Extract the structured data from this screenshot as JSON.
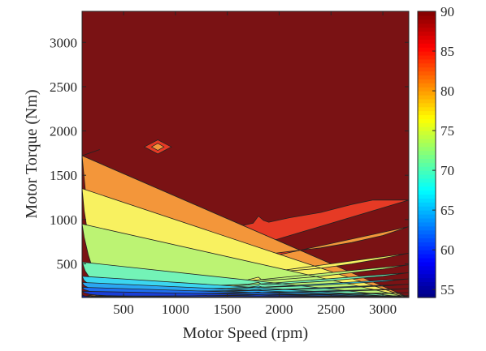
{
  "chart_data": {
    "type": "contour",
    "xlabel": "Motor Speed (rpm)",
    "ylabel": "Motor Torque (Nm)",
    "xlim": [
      100,
      3250
    ],
    "ylim": [
      120,
      3350
    ],
    "xticks": [
      500,
      1000,
      1500,
      2000,
      2500,
      3000
    ],
    "yticks": [
      500,
      1000,
      1500,
      2000,
      2500,
      3000
    ],
    "colorbar": {
      "ticks": [
        55,
        60,
        65,
        70,
        75,
        80,
        85,
        90
      ],
      "range": [
        54,
        90
      ],
      "colormap": "jet"
    },
    "levels": [
      54,
      57,
      60,
      63,
      66,
      69,
      72,
      75,
      78,
      81,
      84,
      87,
      90
    ],
    "background_color": "#7a1214",
    "bands": [
      {
        "min": 87,
        "color": "#7a1214",
        "boundary": [
          [
            100,
            3350
          ],
          [
            100,
            1880
          ],
          [
            270,
            1790
          ],
          [
            100,
            1720
          ],
          [
            120,
            1500
          ],
          [
            160,
            1300
          ],
          [
            240,
            1120
          ],
          [
            400,
            980
          ],
          [
            600,
            915
          ],
          [
            800,
            890
          ],
          [
            1000,
            885
          ],
          [
            1200,
            890
          ],
          [
            1400,
            900
          ],
          [
            1600,
            920
          ],
          [
            1750,
            960
          ],
          [
            1800,
            1040
          ],
          [
            1850,
            990
          ],
          [
            1900,
            970
          ],
          [
            2100,
            1020
          ],
          [
            2400,
            1080
          ],
          [
            2700,
            1170
          ],
          [
            2900,
            1220
          ],
          [
            3250,
            1220
          ],
          [
            3250,
            3350
          ],
          [
            270,
            3350
          ],
          [
            270,
            1950
          ],
          [
            100,
            1950
          ]
        ]
      },
      {
        "min": 84,
        "color": "#e63a25",
        "boundary": [
          [
            3250,
            1220
          ],
          [
            2900,
            1220
          ],
          [
            2700,
            1170
          ],
          [
            2400,
            1080
          ],
          [
            2100,
            1020
          ],
          [
            1900,
            970
          ],
          [
            1850,
            990
          ],
          [
            1800,
            1040
          ],
          [
            1750,
            960
          ],
          [
            1600,
            920
          ],
          [
            1400,
            900
          ],
          [
            1200,
            890
          ],
          [
            1000,
            885
          ],
          [
            800,
            890
          ],
          [
            600,
            915
          ],
          [
            400,
            980
          ],
          [
            240,
            1120
          ],
          [
            160,
            1300
          ],
          [
            120,
            1500
          ],
          [
            100,
            1720
          ]
        ]
      },
      {
        "min": 81,
        "color": "#f3963a",
        "boundary": [
          [
            3250,
            920
          ],
          [
            3000,
            820
          ],
          [
            2700,
            740
          ],
          [
            2400,
            680
          ],
          [
            2100,
            640
          ],
          [
            1900,
            610
          ],
          [
            1830,
            620
          ],
          [
            1800,
            660
          ],
          [
            1700,
            580
          ],
          [
            1500,
            540
          ],
          [
            1200,
            500
          ],
          [
            1000,
            485
          ],
          [
            800,
            475
          ],
          [
            600,
            480
          ],
          [
            450,
            500
          ],
          [
            330,
            560
          ],
          [
            240,
            700
          ],
          [
            180,
            950
          ],
          [
            130,
            1350
          ],
          [
            100,
            1720
          ]
        ]
      },
      {
        "min": 78,
        "color": "#f8f160",
        "boundary": [
          [
            3250,
            620
          ],
          [
            3000,
            560
          ],
          [
            2700,
            500
          ],
          [
            2400,
            450
          ],
          [
            2100,
            420
          ],
          [
            1900,
            400
          ],
          [
            1830,
            410
          ],
          [
            1800,
            440
          ],
          [
            1700,
            400
          ],
          [
            1500,
            380
          ],
          [
            1200,
            360
          ],
          [
            1000,
            350
          ],
          [
            800,
            345
          ],
          [
            600,
            345
          ],
          [
            450,
            350
          ],
          [
            330,
            380
          ],
          [
            260,
            450
          ],
          [
            200,
            600
          ],
          [
            160,
            800
          ],
          [
            120,
            1100
          ],
          [
            100,
            1350
          ]
        ]
      },
      {
        "min": 75,
        "color": "#bcf373",
        "boundary": [
          [
            3250,
            490
          ],
          [
            3000,
            440
          ],
          [
            2700,
            400
          ],
          [
            2400,
            360
          ],
          [
            2100,
            330
          ],
          [
            1900,
            315
          ],
          [
            1830,
            320
          ],
          [
            1800,
            350
          ],
          [
            1700,
            320
          ],
          [
            1500,
            300
          ],
          [
            1200,
            290
          ],
          [
            1000,
            285
          ],
          [
            800,
            280
          ],
          [
            600,
            280
          ],
          [
            450,
            285
          ],
          [
            330,
            300
          ],
          [
            260,
            350
          ],
          [
            200,
            450
          ],
          [
            160,
            600
          ],
          [
            120,
            800
          ],
          [
            100,
            950
          ]
        ]
      },
      {
        "min": 72,
        "color": "#73f3b7",
        "boundary": [
          [
            3250,
            400
          ],
          [
            3000,
            360
          ],
          [
            2700,
            330
          ],
          [
            2400,
            300
          ],
          [
            2100,
            280
          ],
          [
            1900,
            265
          ],
          [
            1830,
            270
          ],
          [
            1800,
            290
          ],
          [
            1700,
            270
          ],
          [
            1500,
            260
          ],
          [
            1200,
            250
          ],
          [
            1000,
            245
          ],
          [
            800,
            240
          ],
          [
            600,
            240
          ],
          [
            450,
            245
          ],
          [
            330,
            255
          ],
          [
            250,
            280
          ],
          [
            180,
            330
          ],
          [
            130,
            420
          ],
          [
            100,
            520
          ]
        ]
      },
      {
        "min": 69,
        "color": "#3bd6f0",
        "boundary": [
          [
            3250,
            330
          ],
          [
            3000,
            300
          ],
          [
            2700,
            280
          ],
          [
            2400,
            260
          ],
          [
            2100,
            245
          ],
          [
            1900,
            235
          ],
          [
            1830,
            240
          ],
          [
            1800,
            250
          ],
          [
            1700,
            235
          ],
          [
            1500,
            225
          ],
          [
            1200,
            220
          ],
          [
            1000,
            215
          ],
          [
            800,
            212
          ],
          [
            600,
            212
          ],
          [
            450,
            215
          ],
          [
            330,
            220
          ],
          [
            240,
            235
          ],
          [
            170,
            265
          ],
          [
            120,
            310
          ],
          [
            100,
            360
          ]
        ]
      },
      {
        "min": 66,
        "color": "#2aa6f2",
        "boundary": [
          [
            3250,
            270
          ],
          [
            3000,
            250
          ],
          [
            2700,
            235
          ],
          [
            2400,
            220
          ],
          [
            2100,
            210
          ],
          [
            1900,
            203
          ],
          [
            1830,
            206
          ],
          [
            1800,
            212
          ],
          [
            1700,
            202
          ],
          [
            1500,
            196
          ],
          [
            1200,
            192
          ],
          [
            1000,
            190
          ],
          [
            800,
            188
          ],
          [
            600,
            188
          ],
          [
            450,
            190
          ],
          [
            330,
            195
          ],
          [
            240,
            205
          ],
          [
            170,
            225
          ],
          [
            120,
            255
          ],
          [
            100,
            290
          ]
        ]
      },
      {
        "min": 63,
        "color": "#1f6ff0",
        "boundary": [
          [
            3250,
            220
          ],
          [
            3000,
            205
          ],
          [
            2700,
            195
          ],
          [
            2400,
            185
          ],
          [
            2100,
            178
          ],
          [
            1900,
            173
          ],
          [
            1830,
            175
          ],
          [
            1800,
            180
          ],
          [
            1700,
            172
          ],
          [
            1500,
            168
          ],
          [
            1200,
            165
          ],
          [
            1000,
            163
          ],
          [
            800,
            162
          ],
          [
            600,
            162
          ],
          [
            450,
            164
          ],
          [
            330,
            168
          ],
          [
            240,
            176
          ],
          [
            170,
            190
          ],
          [
            120,
            210
          ],
          [
            100,
            235
          ]
        ]
      },
      {
        "min": 60,
        "color": "#1a3fd8",
        "boundary": [
          [
            3250,
            175
          ],
          [
            3000,
            165
          ],
          [
            2700,
            158
          ],
          [
            2400,
            152
          ],
          [
            2100,
            148
          ],
          [
            1900,
            145
          ],
          [
            1800,
            150
          ],
          [
            1700,
            144
          ],
          [
            1500,
            141
          ],
          [
            1200,
            139
          ],
          [
            1000,
            138
          ],
          [
            800,
            137
          ],
          [
            600,
            137
          ],
          [
            450,
            138
          ],
          [
            330,
            141
          ],
          [
            240,
            147
          ],
          [
            170,
            157
          ],
          [
            120,
            172
          ],
          [
            100,
            190
          ]
        ]
      },
      {
        "min": 57,
        "color": "#0a16a5",
        "boundary": [
          [
            3250,
            140
          ],
          [
            3000,
            133
          ],
          [
            2700,
            129
          ],
          [
            2400,
            126
          ],
          [
            2100,
            124
          ],
          [
            1800,
            124
          ],
          [
            1500,
            122
          ],
          [
            1200,
            121
          ],
          [
            1000,
            120
          ],
          [
            100,
            120
          ],
          [
            100,
            150
          ],
          [
            120,
            138
          ],
          [
            170,
            128
          ],
          [
            250,
            122
          ],
          [
            330,
            120
          ]
        ]
      }
    ],
    "islands": [
      {
        "value": 84,
        "color": "#e63a25",
        "points": [
          [
            700,
            1820
          ],
          [
            830,
            1900
          ],
          [
            960,
            1820
          ],
          [
            830,
            1740
          ]
        ]
      },
      {
        "value": 81,
        "color": "#f3963a",
        "points": [
          [
            770,
            1820
          ],
          [
            830,
            1860
          ],
          [
            890,
            1820
          ],
          [
            830,
            1780
          ]
        ]
      }
    ]
  }
}
